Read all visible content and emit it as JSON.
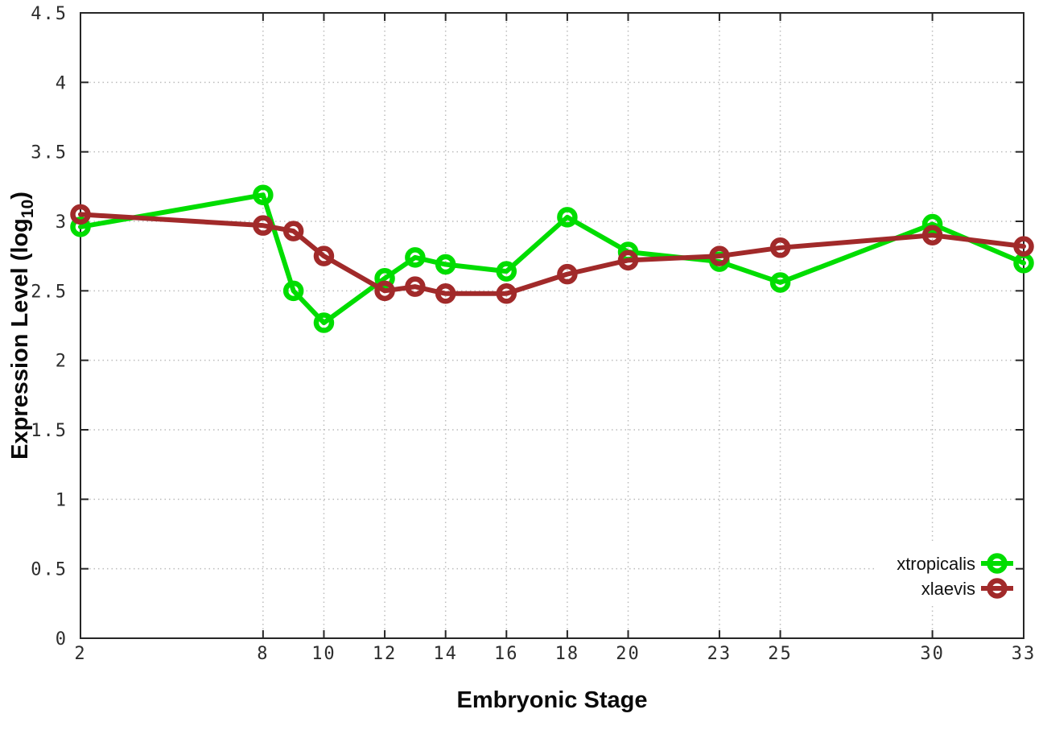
{
  "page": {
    "background": "#ffffff"
  },
  "chart_data": {
    "type": "line",
    "title": "",
    "xlabel": "Embryonic Stage",
    "ylabel": {
      "full": "Expression Level (log10)",
      "prefix": "Expression Level (log",
      "subscript": "10",
      "suffix": ")"
    },
    "xlim": [
      2,
      33
    ],
    "ylim": [
      0,
      4.5
    ],
    "x_ticks": [
      2,
      8,
      10,
      12,
      14,
      16,
      18,
      20,
      23,
      25,
      30,
      33
    ],
    "y_ticks": [
      0,
      0.5,
      1,
      1.5,
      2,
      2.5,
      3,
      3.5,
      4,
      4.5
    ],
    "grid": true,
    "legend_position": "bottom-right",
    "x": [
      2,
      8,
      9,
      10,
      12,
      13,
      14,
      16,
      18,
      20,
      23,
      25,
      30,
      33
    ],
    "series": [
      {
        "name": "xtropicalis",
        "color": "#00dd00",
        "values": [
          2.96,
          3.19,
          2.5,
          2.27,
          2.59,
          2.74,
          2.69,
          2.64,
          3.03,
          2.78,
          2.71,
          2.56,
          2.98,
          2.7
        ]
      },
      {
        "name": "xlaevis",
        "color": "#a12a2a",
        "values": [
          3.05,
          2.97,
          2.93,
          2.75,
          2.5,
          2.53,
          2.48,
          2.48,
          2.62,
          2.72,
          2.75,
          2.81,
          2.9,
          2.82
        ]
      }
    ],
    "colors": {
      "grid": "#bcbcbc",
      "axis": "#262626",
      "tick_text": "#2d2d2d",
      "title_text": "#0a0a0a",
      "background": "#ffffff"
    }
  }
}
